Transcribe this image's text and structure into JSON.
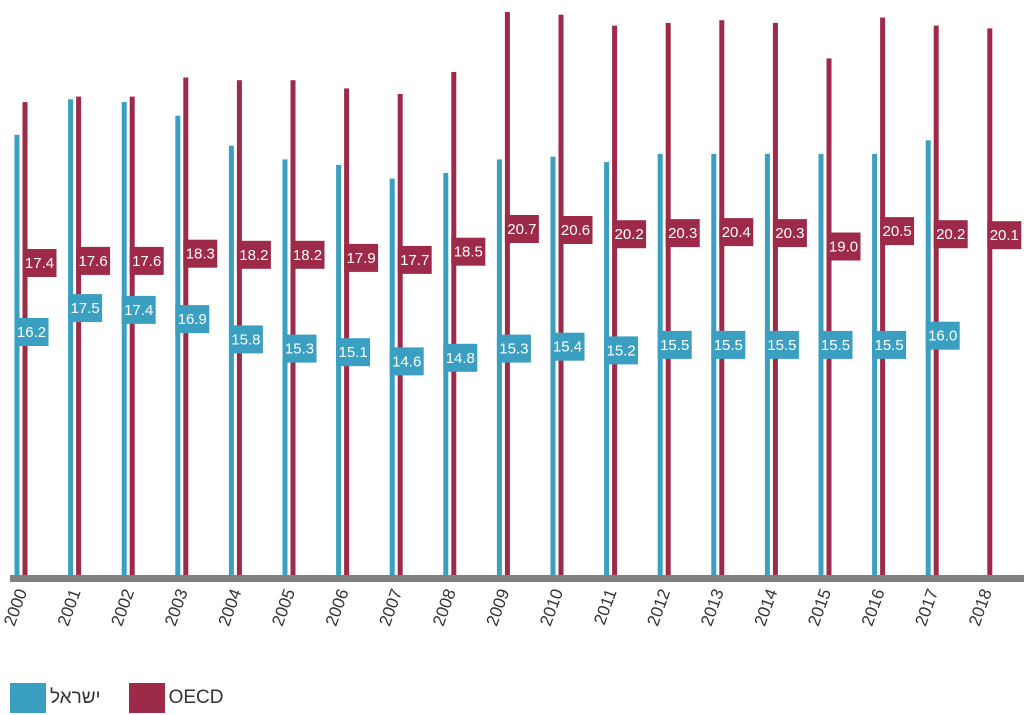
{
  "chart_data": {
    "type": "bar",
    "categories": [
      "2000",
      "2001",
      "2002",
      "2003",
      "2004",
      "2005",
      "2006",
      "2007",
      "2008",
      "2009",
      "2010",
      "2011",
      "2012",
      "2013",
      "2014",
      "2015",
      "2016",
      "2017",
      "2018"
    ],
    "series": [
      {
        "name": "ישראל",
        "color": "#3a9fc0",
        "values": [
          16.2,
          17.5,
          17.4,
          16.9,
          15.8,
          15.3,
          15.1,
          14.6,
          14.8,
          15.3,
          15.4,
          15.2,
          15.5,
          15.5,
          15.5,
          15.5,
          15.5,
          16.0,
          null
        ]
      },
      {
        "name": "OECD",
        "color": "#9e2a4a",
        "values": [
          17.4,
          17.6,
          17.6,
          18.3,
          18.2,
          18.2,
          17.9,
          17.7,
          18.5,
          20.7,
          20.6,
          20.2,
          20.3,
          20.4,
          20.3,
          19.0,
          20.5,
          20.2,
          20.1
        ]
      }
    ],
    "baseline_color": "#808080",
    "legend_position": "bottom-left",
    "grid": false
  }
}
